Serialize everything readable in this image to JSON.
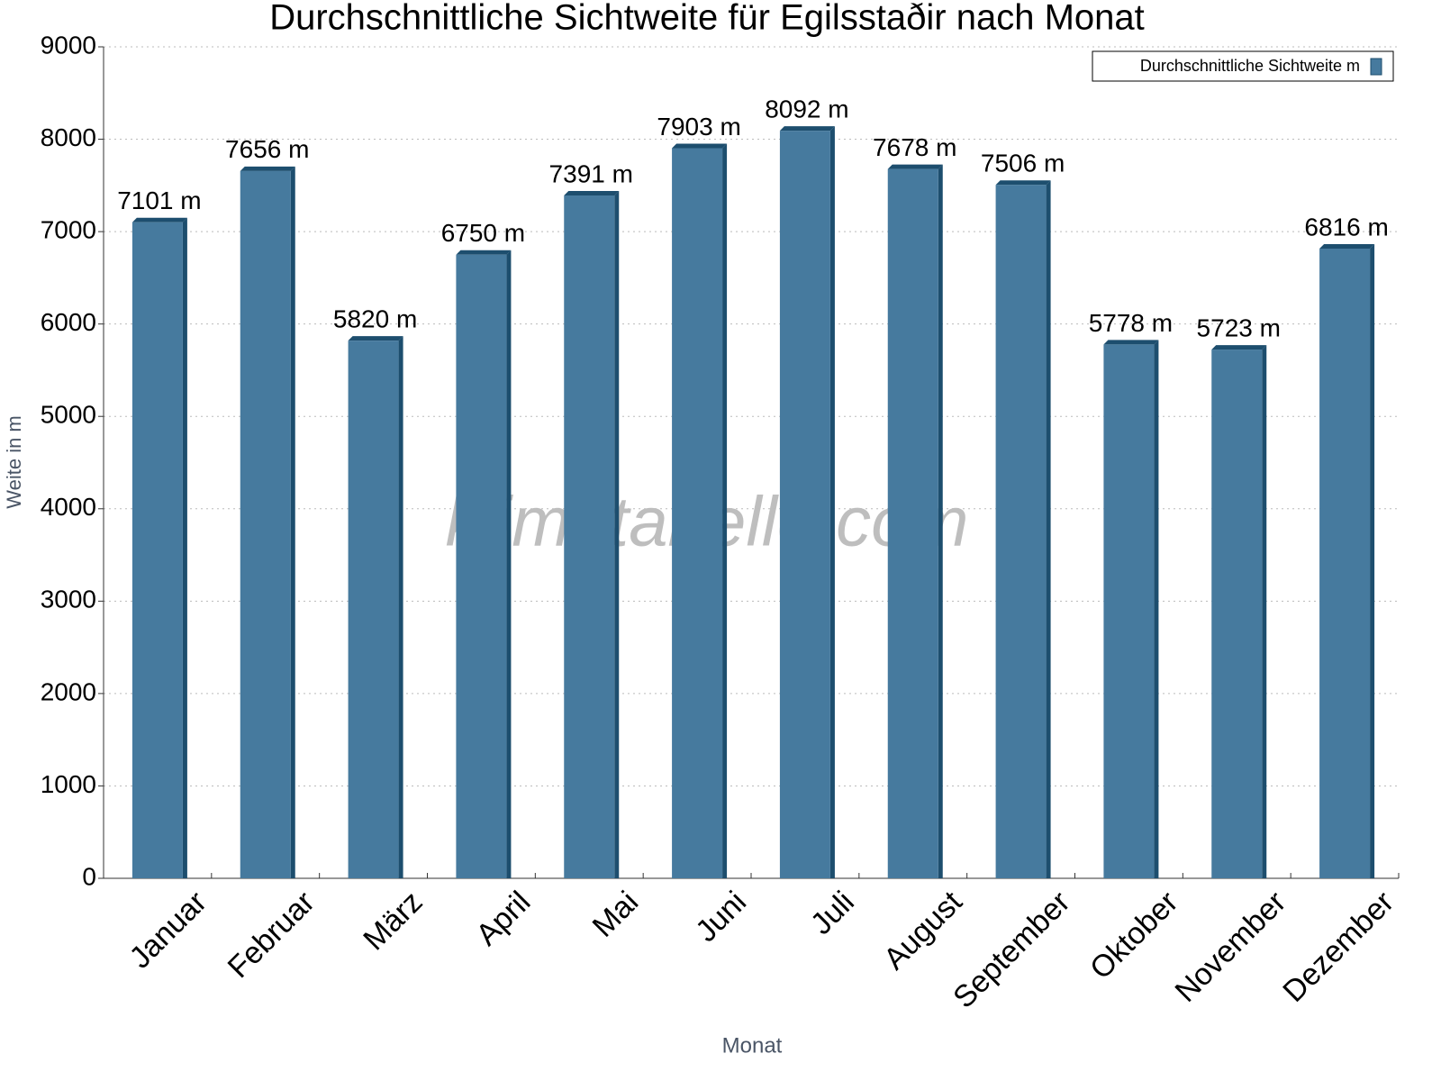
{
  "chart_data": {
    "type": "bar",
    "title": "Durchschnittliche Sichtweite für Egilsstaðir nach Monat",
    "x_label": "Monat",
    "y_label": "Weite in m",
    "watermark": "klimatabelle.com",
    "categories": [
      "Januar",
      "Februar",
      "März",
      "April",
      "Mai",
      "Juni",
      "Juli",
      "August",
      "September",
      "Oktober",
      "November",
      "Dezember"
    ],
    "series": [
      {
        "name": "Durchschnittliche Sichtweite m",
        "color": "#467a9e",
        "values": [
          7101,
          7656,
          5820,
          6750,
          7391,
          7903,
          8092,
          7678,
          7506,
          5778,
          5723,
          6816
        ],
        "value_labels": [
          "7101 m",
          "7656 m",
          "5820 m",
          "6750 m",
          "7391 m",
          "7903 m",
          "8092 m",
          "7678 m",
          "7506 m",
          "5778 m",
          "5723 m",
          "6816 m"
        ]
      }
    ],
    "ylim": [
      0,
      9000
    ],
    "yticks": [
      0,
      1000,
      2000,
      3000,
      4000,
      5000,
      6000,
      7000,
      8000,
      9000
    ],
    "grid": true,
    "legend": "upper right"
  }
}
